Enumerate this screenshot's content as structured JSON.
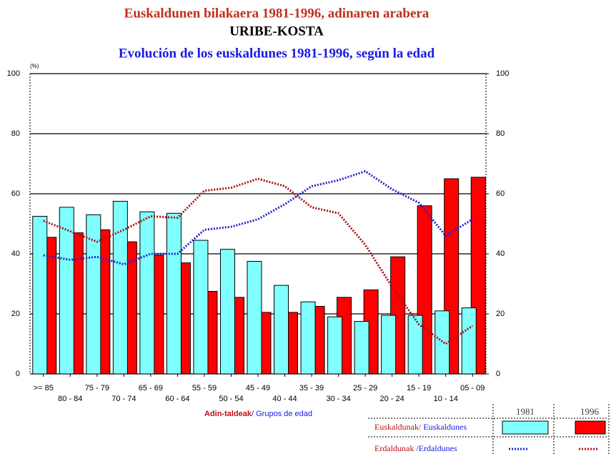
{
  "chart_data": {
    "type": "bar-line",
    "title": "Euskaldunen bilakaera 1981-1996, adinaren arabera",
    "subtitle": "URIBE-KOSTA",
    "title_es": "Evolución de los euskaldunes 1981-1996, según la edad",
    "unit_label": "(%)",
    "xlabel_eu": "Adin-taldeak",
    "xlabel_es": "/ Grupos de edad",
    "categories": [
      ">= 85",
      "80 - 84",
      "75 - 79",
      "70 - 74",
      "65 - 69",
      "60 - 64",
      "55 - 59",
      "50 - 54",
      "45 - 49",
      "40 - 44",
      "35 - 39",
      "30 - 34",
      "25 - 29",
      "20 - 24",
      "15 - 19",
      "10 - 14",
      "05 - 09"
    ],
    "ylim": [
      0,
      100
    ],
    "yticks": [
      0,
      20,
      40,
      60,
      80,
      100
    ],
    "y2lim": [
      0,
      100
    ],
    "y2ticks": [
      0,
      20,
      40,
      60,
      80,
      100
    ],
    "grid": true,
    "groups": [
      {
        "name_eu": "Euskaldunak/",
        "name_es": " Euskaldunes",
        "style": "bar",
        "series": [
          {
            "name": "1981",
            "color": "#80ffff",
            "values": [
              52.5,
              55.5,
              53,
              57.5,
              54,
              53.5,
              44.5,
              41.5,
              37.5,
              29.5,
              24,
              19,
              17.5,
              19.5,
              19.5,
              21,
              22
            ]
          },
          {
            "name": "1996",
            "color": "#ff0000",
            "values": [
              45.5,
              47,
              48,
              44,
              39.5,
              37,
              27.5,
              25.5,
              20.5,
              20.5,
              22.5,
              25.5,
              28,
              39,
              56,
              65,
              65.5
            ]
          }
        ]
      },
      {
        "name_eu": "Erdaldunak ",
        "name_es": "/Erdaldunes",
        "style": "line",
        "series": [
          {
            "color": "#2222cc",
            "values": [
              39.5,
              38,
              39,
              36.5,
              40,
              40,
              48,
              49,
              51.5,
              56.5,
              62.5,
              64.5,
              67.5,
              61.5,
              57,
              46,
              51.5
            ]
          },
          {
            "color": "#aa1111",
            "values": [
              51,
              47.5,
              44,
              48,
              52.5,
              52,
              61,
              62,
              65,
              62.5,
              55.5,
              53.5,
              43,
              29,
              16.5,
              10,
              16
            ]
          }
        ]
      }
    ]
  }
}
